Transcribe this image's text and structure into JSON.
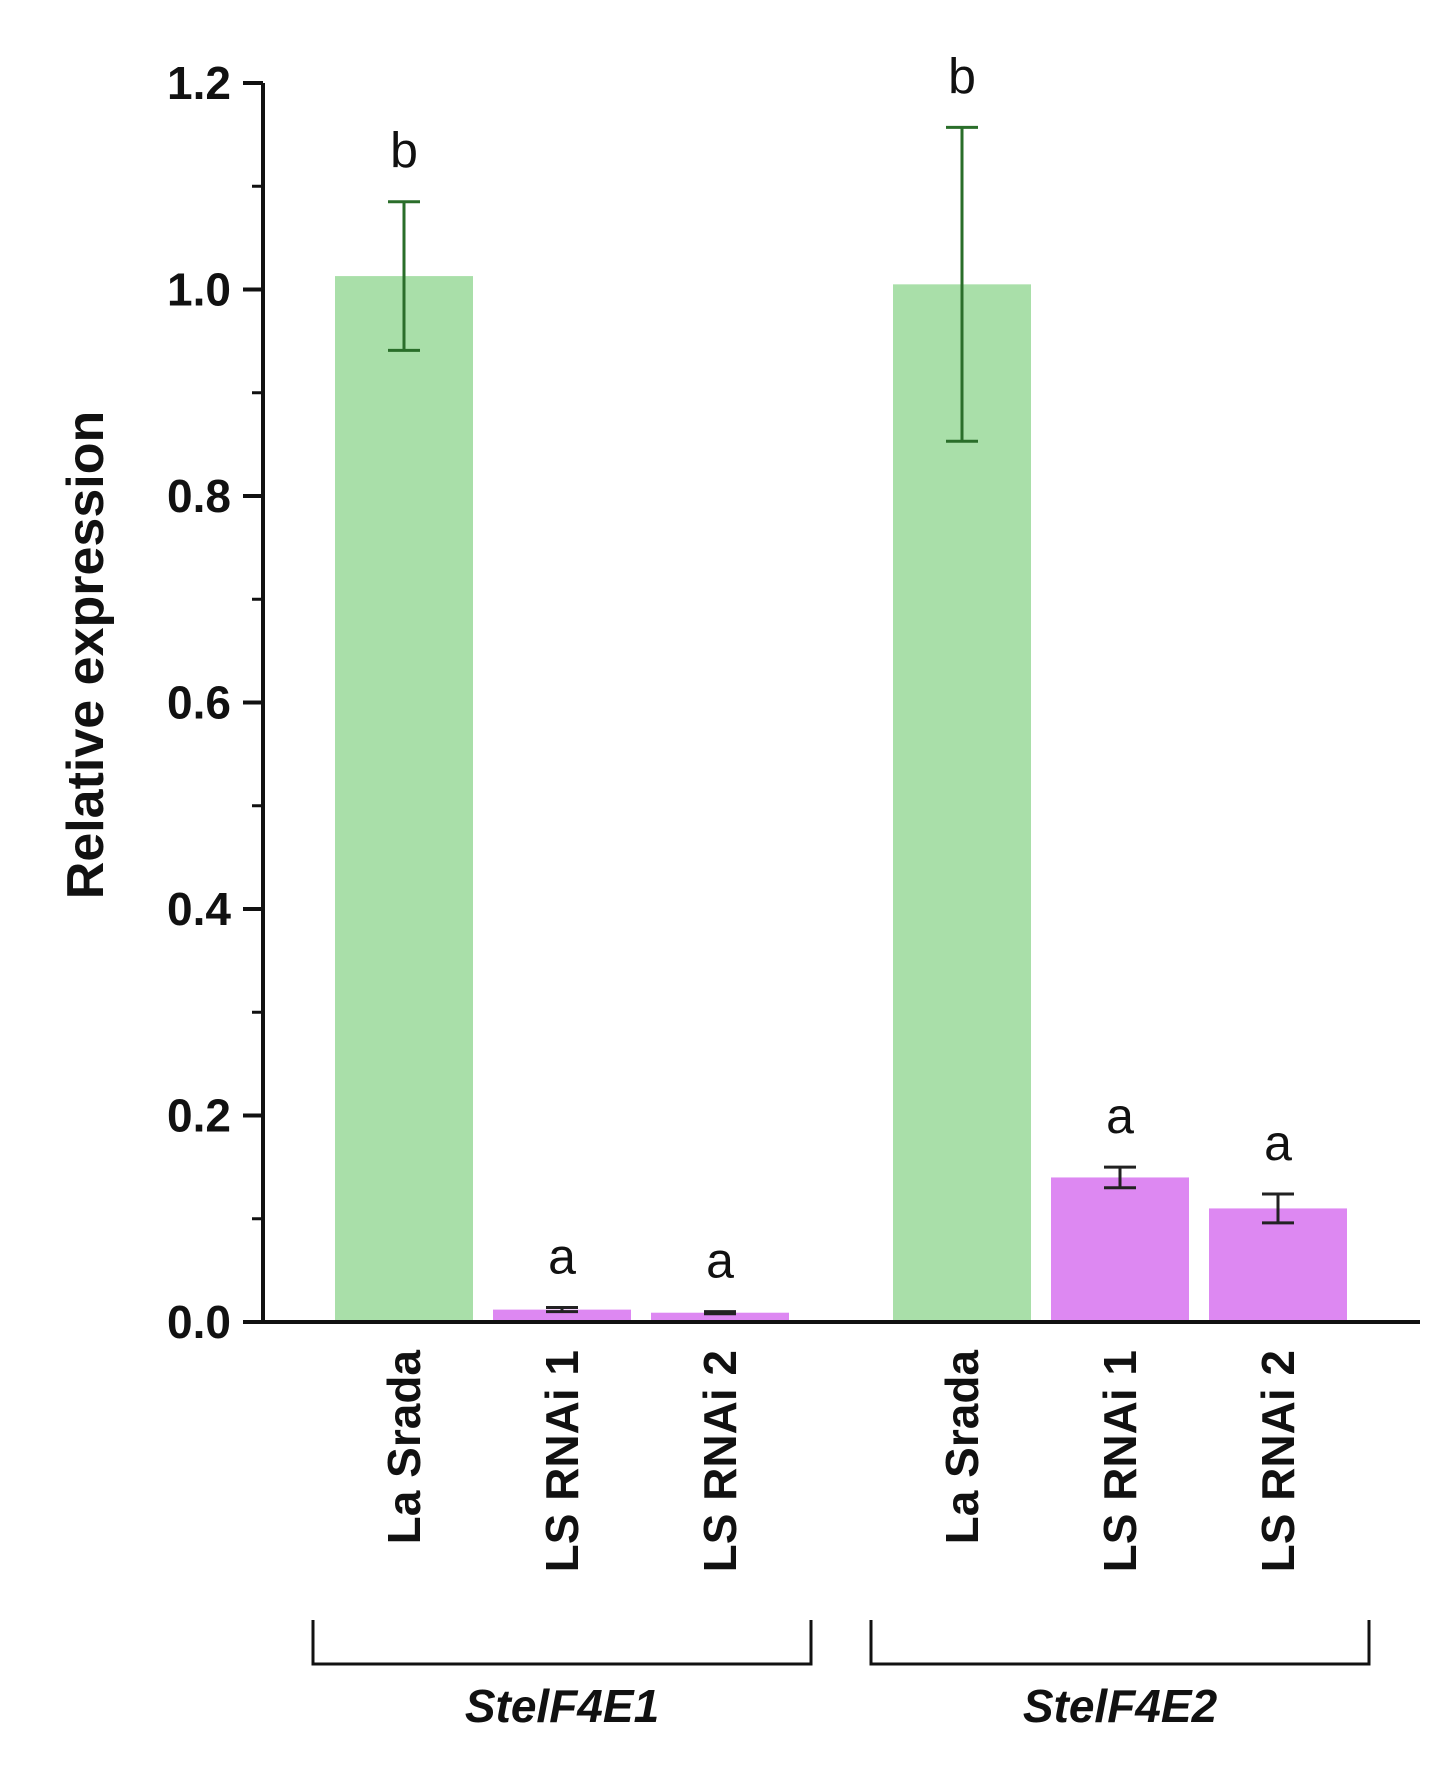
{
  "chart_data": {
    "type": "bar",
    "title": "",
    "xlabel": "",
    "ylabel": "Relative expression",
    "ylim": [
      0,
      1.2
    ],
    "yticks": [
      "0.0",
      "0.2",
      "0.4",
      "0.6",
      "0.8",
      "1.0",
      "1.2"
    ],
    "grid": false,
    "groups": [
      {
        "name": "StelF4E1",
        "bars": [
          {
            "category": "La Srada",
            "value": 1.013,
            "error": 0.072,
            "letter": "b",
            "color": "#a9dfa9"
          },
          {
            "category": "LS RNAi 1",
            "value": 0.012,
            "error": 0.002,
            "letter": "a",
            "color": "#dd88f2"
          },
          {
            "category": "LS RNAi 2",
            "value": 0.009,
            "error": 0.001,
            "letter": "a",
            "color": "#dd88f2"
          }
        ]
      },
      {
        "name": "StelF4E2",
        "bars": [
          {
            "category": "La Srada",
            "value": 1.005,
            "error": 0.152,
            "letter": "b",
            "color": "#a9dfa9"
          },
          {
            "category": "LS RNAi 1",
            "value": 0.14,
            "error": 0.01,
            "letter": "a",
            "color": "#dd88f2"
          },
          {
            "category": "LS RNAi 2",
            "value": 0.11,
            "error": 0.014,
            "letter": "a",
            "color": "#dd88f2"
          }
        ]
      }
    ],
    "colors": {
      "control": "#a9dfa9",
      "rnai": "#dd88f2",
      "control_errorbar": "#2a6e2a",
      "rnai_errorbar": "#222222",
      "axis": "#111111"
    }
  }
}
